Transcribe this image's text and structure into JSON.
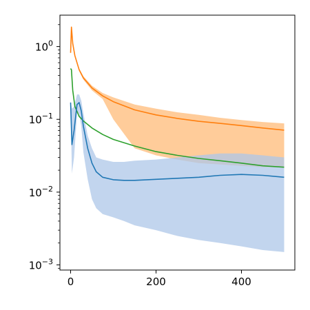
{
  "chart_data": {
    "type": "line",
    "title": "",
    "xlabel": "",
    "ylabel": "",
    "xlim": [
      -25,
      525
    ],
    "ylim": [
      0.00085,
      2.7
    ],
    "yscale": "log",
    "grid": false,
    "legend": "none",
    "x_ticks": [
      {
        "value": 0,
        "label": "0"
      },
      {
        "value": 200,
        "label": "200"
      },
      {
        "value": 400,
        "label": "400"
      }
    ],
    "y_ticks": [
      {
        "value": 0.001,
        "base": "10",
        "exp": "−3"
      },
      {
        "value": 0.01,
        "base": "10",
        "exp": "−2"
      },
      {
        "value": 0.1,
        "base": "10",
        "exp": "−1"
      },
      {
        "value": 1,
        "base": "10",
        "exp": "0"
      }
    ],
    "series": [
      {
        "color": "#ff7f0e",
        "band_color": "#ffbb78",
        "x": [
          0,
          2,
          5,
          10,
          20,
          30,
          50,
          75,
          100,
          150,
          200,
          250,
          300,
          350,
          400,
          450,
          500
        ],
        "y": [
          0.82,
          1.85,
          1.1,
          0.75,
          0.48,
          0.37,
          0.27,
          0.21,
          0.175,
          0.135,
          0.115,
          0.103,
          0.094,
          0.088,
          0.082,
          0.076,
          0.071
        ],
        "band_upper": [
          0.9,
          1.9,
          1.15,
          0.78,
          0.5,
          0.39,
          0.29,
          0.23,
          0.2,
          0.16,
          0.14,
          0.125,
          0.115,
          0.105,
          0.098,
          0.092,
          0.088
        ],
        "band_lower": [
          0.8,
          1.8,
          1.05,
          0.72,
          0.46,
          0.35,
          0.25,
          0.19,
          0.1,
          0.04,
          0.032,
          0.028,
          0.025,
          0.024,
          0.023,
          0.022,
          0.022
        ]
      },
      {
        "color": "#2ca02c",
        "x": [
          0,
          2,
          5,
          10,
          20,
          30,
          50,
          75,
          100,
          150,
          200,
          250,
          300,
          350,
          400,
          450,
          500
        ],
        "y": [
          0.5,
          0.48,
          0.25,
          0.15,
          0.11,
          0.095,
          0.076,
          0.062,
          0.053,
          0.043,
          0.036,
          0.032,
          0.029,
          0.027,
          0.025,
          0.023,
          0.022
        ]
      },
      {
        "color": "#1f77b4",
        "band_color": "#aec7e8",
        "x": [
          0,
          3,
          8,
          15,
          20,
          25,
          30,
          40,
          50,
          60,
          75,
          100,
          125,
          150,
          200,
          250,
          300,
          350,
          400,
          450,
          500
        ],
        "y": [
          0.17,
          0.045,
          0.07,
          0.16,
          0.17,
          0.13,
          0.08,
          0.04,
          0.025,
          0.019,
          0.016,
          0.0148,
          0.0145,
          0.0145,
          0.015,
          0.0155,
          0.016,
          0.017,
          0.0175,
          0.017,
          0.016
        ],
        "band_upper": [
          0.18,
          0.14,
          0.15,
          0.22,
          0.22,
          0.18,
          0.12,
          0.06,
          0.04,
          0.03,
          0.028,
          0.026,
          0.026,
          0.027,
          0.028,
          0.03,
          0.032,
          0.034,
          0.034,
          0.032,
          0.03
        ],
        "band_lower": [
          0.16,
          0.018,
          0.03,
          0.12,
          0.12,
          0.08,
          0.035,
          0.015,
          0.008,
          0.006,
          0.005,
          0.0045,
          0.004,
          0.0035,
          0.003,
          0.0025,
          0.0022,
          0.002,
          0.0018,
          0.0016,
          0.0015
        ]
      }
    ]
  }
}
